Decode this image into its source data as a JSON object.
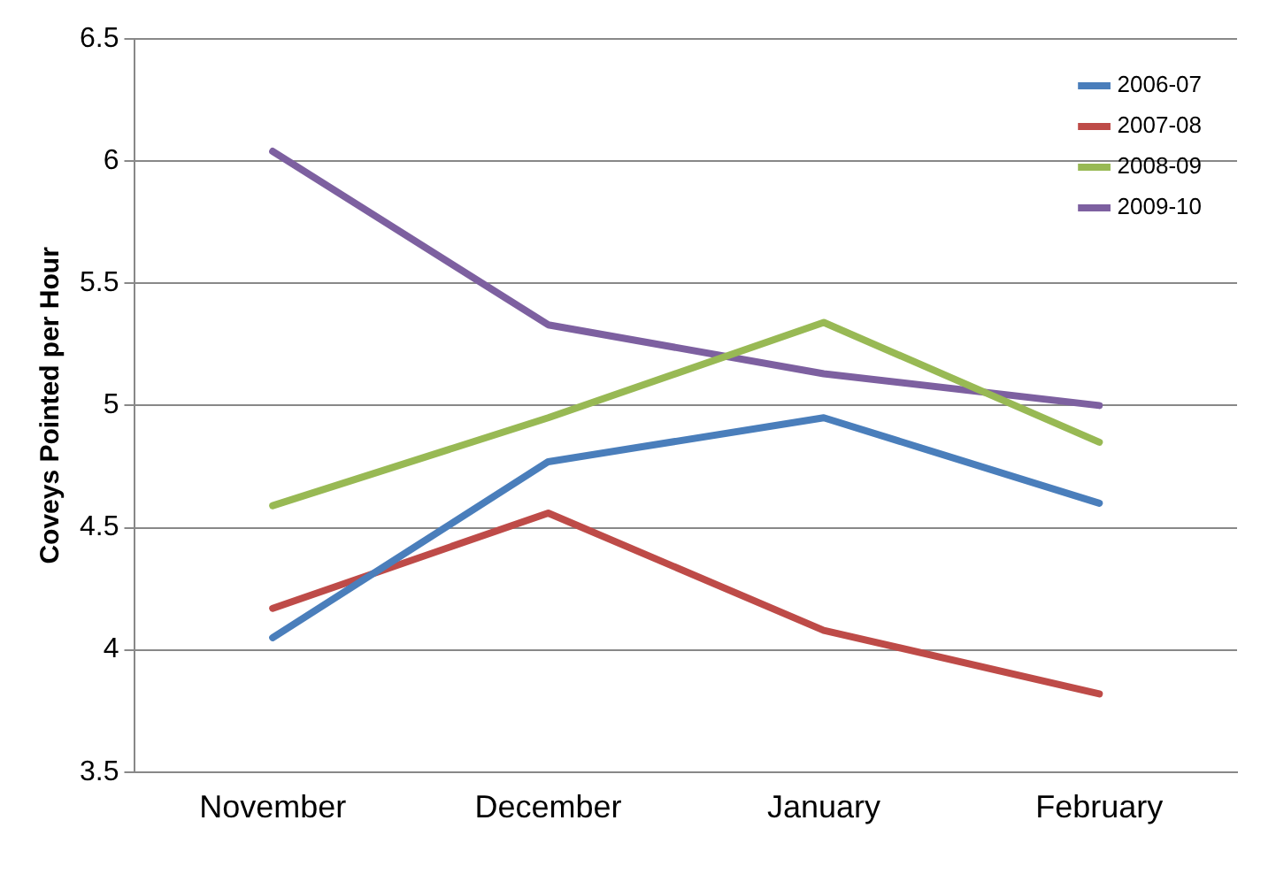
{
  "chart_data": {
    "type": "line",
    "ylabel": "Coveys Pointed per Hour",
    "categories": [
      "November",
      "December",
      "January",
      "February"
    ],
    "series": [
      {
        "name": "2006-07",
        "color": "#4a7ebb",
        "values": [
          4.05,
          4.77,
          4.95,
          4.6
        ]
      },
      {
        "name": "2007-08",
        "color": "#be4b48",
        "values": [
          4.17,
          4.56,
          4.08,
          3.82
        ]
      },
      {
        "name": "2008-09",
        "color": "#98b954",
        "values": [
          4.59,
          4.95,
          5.34,
          4.85
        ]
      },
      {
        "name": "2009-10",
        "color": "#7d60a0",
        "values": [
          6.04,
          5.33,
          5.13,
          5.0
        ]
      }
    ],
    "ylim": [
      3.5,
      6.5
    ],
    "yticks": [
      3.5,
      4,
      4.5,
      5,
      5.5,
      6,
      6.5
    ],
    "grid": "y",
    "legend": "top right",
    "marker": "none",
    "line_style": "solid"
  }
}
